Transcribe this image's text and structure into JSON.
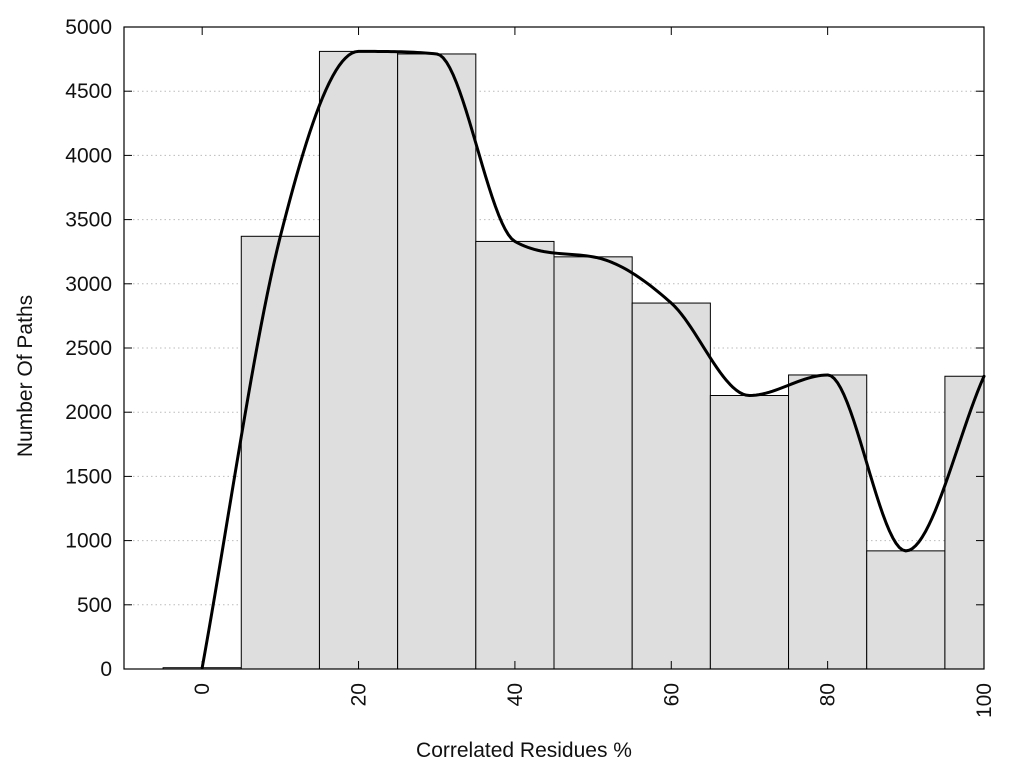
{
  "chart_data": {
    "type": "bar",
    "xlabel": "Correlated Residues %",
    "ylabel": "Number Of Paths",
    "x": [
      0,
      10,
      20,
      30,
      40,
      50,
      60,
      70,
      80,
      90,
      100
    ],
    "values": [
      10,
      3370,
      4810,
      4790,
      3330,
      3210,
      2850,
      2130,
      2290,
      920,
      2280
    ],
    "bin_width": 10,
    "xlim": [
      -10,
      100
    ],
    "ylim": [
      0,
      5000
    ],
    "x_ticks": [
      0,
      20,
      40,
      60,
      80,
      100
    ],
    "y_ticks": [
      0,
      500,
      1000,
      1500,
      2000,
      2500,
      3000,
      3500,
      4000,
      4500,
      5000
    ],
    "x_tick_labels": [
      "0",
      "20",
      "40",
      "60",
      "80",
      "100"
    ],
    "y_tick_labels": [
      "0",
      "500",
      "1000",
      "1500",
      "2000",
      "2500",
      "3000",
      "3500",
      "4000",
      "4500",
      "5000"
    ],
    "grid": {
      "y": true,
      "x": false,
      "style": "dotted"
    },
    "overlay": {
      "type": "smooth-line",
      "color": "#000000"
    },
    "colors": {
      "bar_fill": "#dedede",
      "bar_stroke": "#000000",
      "grid": "#bbbbbb",
      "axis": "#000000"
    }
  }
}
